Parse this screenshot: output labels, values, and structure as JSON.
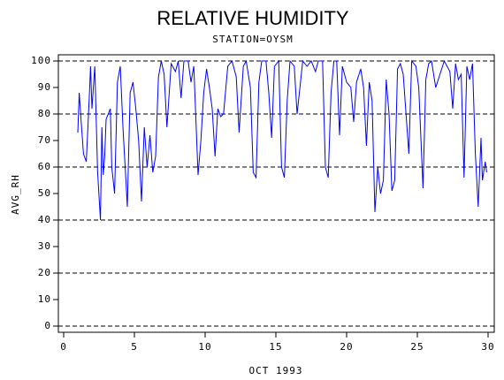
{
  "chart_data": {
    "type": "line",
    "title": "RELATIVE HUMIDITY",
    "subtitle": "STATION=OYSM",
    "x_label": "OCT 1993",
    "y_label": "AVG_RH",
    "xlim": [
      0,
      30
    ],
    "xticks": [
      0,
      5,
      10,
      15,
      20,
      25,
      30
    ],
    "ylim": [
      0,
      100
    ],
    "yticks": [
      0,
      10,
      20,
      30,
      40,
      50,
      60,
      70,
      80,
      90,
      100
    ],
    "grid": true,
    "series": [
      {
        "name": "AVG_RH",
        "color": "#0000ff",
        "x": [
          1.0,
          1.1,
          1.2,
          1.4,
          1.6,
          1.8,
          1.9,
          2.0,
          2.2,
          2.4,
          2.6,
          2.7,
          2.8,
          2.9,
          3.0,
          3.3,
          3.4,
          3.6,
          3.8,
          4.0,
          4.2,
          4.4,
          4.5,
          4.7,
          4.9,
          5.1,
          5.3,
          5.5,
          5.7,
          5.9,
          6.1,
          6.3,
          6.5,
          6.7,
          6.9,
          7.1,
          7.3,
          7.6,
          7.9,
          8.1,
          8.3,
          8.5,
          8.8,
          9.0,
          9.2,
          9.5,
          9.7,
          9.9,
          10.1,
          10.3,
          10.5,
          10.7,
          10.9,
          11.1,
          11.3,
          11.6,
          11.9,
          12.2,
          12.4,
          12.7,
          12.9,
          13.2,
          13.4,
          13.6,
          13.8,
          14.0,
          14.3,
          14.5,
          14.7,
          14.9,
          15.2,
          15.4,
          15.6,
          15.8,
          16.0,
          16.3,
          16.5,
          16.7,
          16.9,
          17.2,
          17.5,
          17.8,
          18.0,
          18.3,
          18.5,
          18.7,
          18.9,
          19.1,
          19.3,
          19.5,
          19.7,
          20.0,
          20.3,
          20.5,
          20.7,
          21.0,
          21.2,
          21.4,
          21.6,
          21.8,
          22.0,
          22.2,
          22.4,
          22.6,
          22.8,
          23.0,
          23.2,
          23.4,
          23.6,
          23.8,
          24.0,
          24.2,
          24.4,
          24.6,
          24.9,
          25.1,
          25.4,
          25.6,
          25.8,
          26.0,
          26.3,
          26.6,
          26.9,
          27.1,
          27.3,
          27.5,
          27.7,
          27.9,
          28.1,
          28.3,
          28.5,
          28.7,
          28.9,
          29.1,
          29.3,
          29.5,
          29.6,
          29.8,
          29.9
        ],
        "values": [
          73,
          88,
          80,
          65,
          62,
          85,
          98,
          82,
          98,
          58,
          40,
          75,
          57,
          64,
          78,
          82,
          60,
          50,
          92,
          98,
          74,
          55,
          45,
          88,
          92,
          82,
          70,
          47,
          75,
          60,
          72,
          58,
          64,
          94,
          100,
          95,
          75,
          99,
          96,
          100,
          86,
          100,
          100,
          92,
          98,
          57,
          70,
          88,
          97,
          90,
          82,
          64,
          82,
          79,
          80,
          98,
          100,
          94,
          73,
          98,
          100,
          90,
          58,
          56,
          92,
          100,
          100,
          88,
          71,
          98,
          100,
          60,
          56,
          85,
          100,
          98,
          80,
          90,
          100,
          98,
          100,
          96,
          100,
          100,
          60,
          56,
          88,
          100,
          100,
          72,
          98,
          92,
          90,
          77,
          92,
          97,
          90,
          68,
          92,
          85,
          43,
          60,
          50,
          55,
          93,
          80,
          51,
          55,
          97,
          99,
          95,
          80,
          65,
          100,
          98,
          90,
          52,
          93,
          99,
          100,
          90,
          95,
          100,
          98,
          96,
          82,
          99,
          93,
          95,
          56,
          98,
          93,
          99,
          65,
          45,
          71,
          55,
          62,
          58
        ]
      }
    ]
  }
}
